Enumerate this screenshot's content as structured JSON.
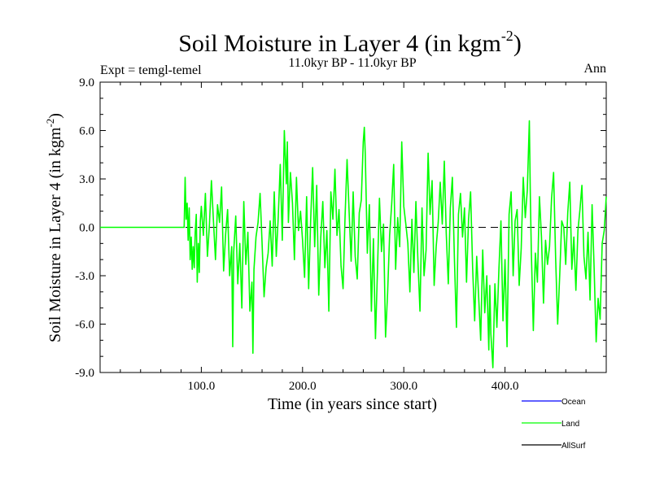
{
  "chart_data": {
    "type": "line",
    "title": "Soil Moisture in Layer 4 (in kgm",
    "title_superscript": "-2",
    "title_close": ")",
    "subtitle": "11.0kyr BP - 11.0kyr BP",
    "left_label": "Expt = temgl-temel",
    "right_label": "Ann",
    "xlabel": "Time (in years since start)",
    "ylabel": "Soil Moisture in Layer 4 (in kgm",
    "ylabel_superscript": "-2",
    "ylabel_close": ")",
    "xlim": [
      0,
      500
    ],
    "ylim": [
      -9,
      9
    ],
    "x_ticks": [
      {
        "value": 100,
        "label": "100.0"
      },
      {
        "value": 200,
        "label": "200.0"
      },
      {
        "value": 300,
        "label": "300.0"
      },
      {
        "value": 400,
        "label": "400.0"
      }
    ],
    "y_ticks": [
      {
        "value": 9,
        "label": "9.0"
      },
      {
        "value": 6,
        "label": "6.0"
      },
      {
        "value": 3,
        "label": "3.0"
      },
      {
        "value": 0,
        "label": "0.0"
      },
      {
        "value": -3,
        "label": "-3.0"
      },
      {
        "value": -6,
        "label": "-6.0"
      },
      {
        "value": -9,
        "label": "-9.0"
      }
    ],
    "zero_line": "dashed",
    "legend_position": "bottom-right",
    "series": [
      {
        "name": "Ocean",
        "color": "#0000ff",
        "visible_data": false
      },
      {
        "name": "Land",
        "color": "#00ff00",
        "flat_until": 83,
        "x": [
          0,
          83,
          84,
          85,
          86,
          87,
          88,
          89,
          90,
          91,
          92,
          93,
          94,
          95,
          96,
          97,
          98,
          99,
          100,
          102,
          104,
          106,
          108,
          110,
          112,
          114,
          116,
          118,
          120,
          122,
          124,
          126,
          128,
          130,
          131,
          132,
          134,
          136,
          138,
          140,
          142,
          144,
          146,
          148,
          150,
          151,
          152,
          154,
          156,
          158,
          160,
          162,
          164,
          166,
          168,
          170,
          172,
          174,
          176,
          178,
          180,
          182,
          184,
          185,
          186,
          188,
          190,
          192,
          194,
          196,
          198,
          200,
          202,
          204,
          206,
          208,
          210,
          212,
          214,
          216,
          218,
          220,
          222,
          224,
          226,
          228,
          230,
          232,
          234,
          236,
          238,
          240,
          242,
          244,
          246,
          248,
          250,
          252,
          254,
          256,
          258,
          260,
          261,
          262,
          264,
          266,
          268,
          270,
          272,
          274,
          276,
          278,
          280,
          282,
          284,
          286,
          288,
          290,
          292,
          294,
          296,
          298,
          300,
          302,
          304,
          306,
          308,
          310,
          312,
          314,
          316,
          318,
          320,
          322,
          324,
          326,
          328,
          330,
          332,
          334,
          336,
          338,
          340,
          342,
          344,
          346,
          348,
          350,
          352,
          354,
          356,
          358,
          360,
          362,
          364,
          366,
          368,
          370,
          372,
          374,
          376,
          378,
          380,
          382,
          384,
          385,
          386,
          388,
          390,
          392,
          394,
          396,
          398,
          400,
          402,
          404,
          406,
          408,
          410,
          412,
          414,
          416,
          418,
          420,
          422,
          424,
          425,
          426,
          428,
          430,
          432,
          434,
          436,
          438,
          440,
          442,
          444,
          446,
          448,
          450,
          452,
          454,
          456,
          458,
          460,
          462,
          464,
          466,
          468,
          470,
          472,
          474,
          476,
          478,
          480,
          482,
          484,
          486,
          488,
          490,
          492,
          494,
          496,
          498,
          500
        ],
        "values": [
          0.0,
          0.0,
          3.1,
          0.5,
          1.5,
          -0.8,
          1.2,
          -2.0,
          -0.6,
          -2.6,
          -1.2,
          -2.5,
          -0.3,
          0.8,
          -3.4,
          -1.0,
          -2.8,
          0.4,
          1.3,
          -0.5,
          2.1,
          -1.8,
          0.2,
          2.9,
          0.4,
          -2.0,
          1.4,
          0.3,
          2.5,
          -2.7,
          -0.4,
          1.1,
          -3.0,
          -1.2,
          -7.4,
          -1.5,
          0.7,
          -3.5,
          -1.0,
          -5.0,
          1.6,
          -2.3,
          -0.3,
          -5.2,
          -3.4,
          -7.8,
          -2.6,
          -0.6,
          0.3,
          2.1,
          -0.9,
          -4.3,
          -2.5,
          -1.6,
          0.4,
          -2.4,
          2.2,
          -1.8,
          0.6,
          3.9,
          -0.8,
          6.0,
          2.7,
          5.3,
          0.3,
          3.4,
          1.5,
          -2.0,
          3.1,
          -0.2,
          1.0,
          -0.8,
          -3.1,
          1.9,
          -3.8,
          0.5,
          3.7,
          -1.2,
          2.6,
          -4.2,
          -0.6,
          1.6,
          -2.5,
          -0.2,
          -5.2,
          2.2,
          0.5,
          3.6,
          -0.5,
          1.1,
          -2.4,
          -3.8,
          0.6,
          4.2,
          1.0,
          -2.1,
          2.2,
          -1.8,
          -3.2,
          0.9,
          1.7,
          5.3,
          6.2,
          4.5,
          -1.6,
          1.4,
          -5.2,
          -0.7,
          -6.9,
          -2.6,
          1.8,
          -1.5,
          0.2,
          -6.8,
          -4.1,
          -0.5,
          1.4,
          3.9,
          -2.6,
          0.6,
          -1.2,
          5.3,
          1.3,
          0.2,
          -1.0,
          -4.0,
          0.5,
          -2.8,
          1.6,
          -2.1,
          -5.2,
          1.2,
          -3.0,
          -1.4,
          4.6,
          0.8,
          2.9,
          -3.6,
          -1.2,
          0.3,
          2.8,
          0.2,
          4.1,
          -0.4,
          -3.5,
          1.2,
          3.1,
          -1.9,
          -6.2,
          0.8,
          2.1,
          -0.6,
          1.2,
          -3.4,
          0.5,
          2.2,
          -2.5,
          -5.8,
          -1.8,
          -4.4,
          -7.0,
          -1.4,
          -5.3,
          -3.0,
          -7.6,
          -3.6,
          -6.6,
          -8.7,
          -3.5,
          -6.2,
          -2.6,
          0.4,
          -5.8,
          -2.0,
          -7.4,
          0.8,
          2.2,
          -3.0,
          0.4,
          1.1,
          -3.6,
          -1.3,
          3.1,
          0.6,
          2.3,
          6.6,
          2.0,
          -1.4,
          -6.4,
          -1.6,
          -3.4,
          1.9,
          -0.6,
          -4.7,
          -0.8,
          -2.3,
          -1.2,
          1.8,
          3.4,
          -1.9,
          -6.0,
          -3.0,
          0.4,
          0.0,
          -2.3,
          0.9,
          2.8,
          -2.6,
          -0.6,
          -3.9,
          -0.2,
          1.1,
          2.6,
          -1.8,
          -3.2,
          -0.3,
          -4.5,
          1.4,
          -2.5,
          -7.1,
          -4.4,
          -5.7,
          -1.0,
          -0.2,
          1.9
        ]
      },
      {
        "name": "AllSurf",
        "color": "#000000",
        "visible_data": false
      }
    ]
  }
}
